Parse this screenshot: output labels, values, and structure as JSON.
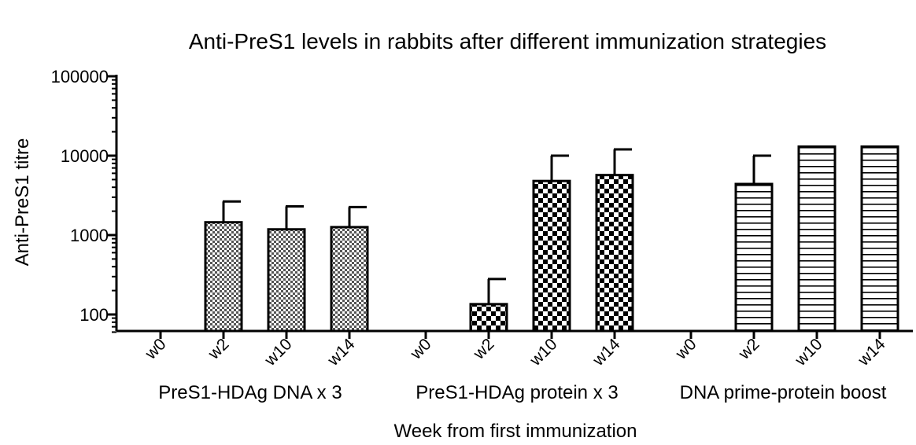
{
  "chart_data": {
    "type": "bar",
    "title": "Anti-PreS1 levels in rabbits after different immunization strategies",
    "xlabel": "Week from first immunization",
    "ylabel": "Anti-PreS1 titre",
    "yscale": "log",
    "ylim": [
      60,
      100000
    ],
    "yticks": [
      100,
      1000,
      10000,
      100000
    ],
    "ytick_labels": [
      "100",
      "1000",
      "10000",
      "100000"
    ],
    "groups": [
      {
        "label": "PreS1-HDAg DNA x 3",
        "pattern": "checker-fine",
        "bars": [
          {
            "category": "w0",
            "value": null,
            "error": null
          },
          {
            "category": "w2",
            "value": 1450,
            "error": 2650
          },
          {
            "category": "w10",
            "value": 1180,
            "error": 2300
          },
          {
            "category": "w14",
            "value": 1260,
            "error": 2250
          }
        ]
      },
      {
        "label": "PreS1-HDAg protein  x 3",
        "pattern": "checker-coarse",
        "bars": [
          {
            "category": "w0",
            "value": null,
            "error": null
          },
          {
            "category": "w2",
            "value": 135,
            "error": 280
          },
          {
            "category": "w10",
            "value": 4800,
            "error": 10000
          },
          {
            "category": "w14",
            "value": 5700,
            "error": 12000
          }
        ]
      },
      {
        "label": "DNA prime-protein boost",
        "pattern": "horizontal-lines",
        "bars": [
          {
            "category": "w0",
            "value": null,
            "error": null
          },
          {
            "category": "w2",
            "value": 4400,
            "error": 10000
          },
          {
            "category": "w10",
            "value": 13000,
            "error": null
          },
          {
            "category": "w14",
            "value": 13000,
            "error": null
          }
        ]
      }
    ]
  }
}
